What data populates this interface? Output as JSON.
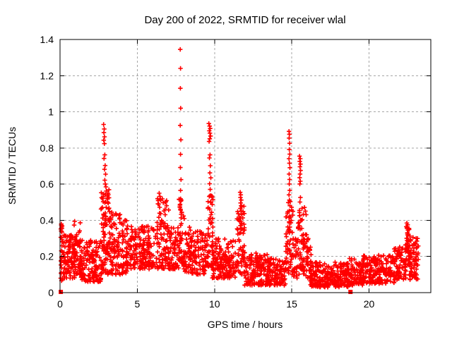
{
  "chart_data": {
    "type": "scatter",
    "title": "Day 200 of 2022, SRMTID for receiver wlal",
    "xlabel": "GPS time / hours",
    "ylabel": "SRMTID / TECUs",
    "xlim": [
      0,
      24
    ],
    "ylim": [
      0,
      1.4
    ],
    "grid": true,
    "legend": "none",
    "marker_color": "#ff0000",
    "grid_color": "#a6a6a6",
    "axis_color": "#000000",
    "xticks": [
      {
        "v": 0,
        "label": "0"
      },
      {
        "v": 5,
        "label": "5"
      },
      {
        "v": 10,
        "label": "10"
      },
      {
        "v": 15,
        "label": "15"
      },
      {
        "v": 20,
        "label": "20"
      }
    ],
    "yticks": [
      {
        "v": 0,
        "label": "0"
      },
      {
        "v": 0.2,
        "label": "0.2"
      },
      {
        "v": 0.4,
        "label": "0.4"
      },
      {
        "v": 0.6,
        "label": "0.6"
      },
      {
        "v": 0.8,
        "label": "0.8"
      },
      {
        "v": 1,
        "label": "1"
      },
      {
        "v": 1.2,
        "label": "1.2"
      },
      {
        "v": 1.4,
        "label": "1.4"
      }
    ],
    "series": [
      {
        "name": "srmtid-plus-markers",
        "marker": "plus",
        "color": "#ff0000",
        "seed": 7,
        "spike_points": [
          [
            0.08,
            0.38
          ],
          [
            0.1,
            0.355
          ],
          [
            0.12,
            0.335
          ],
          [
            2.82,
            0.93
          ],
          [
            2.86,
            0.905
          ],
          [
            2.84,
            0.885
          ],
          [
            2.88,
            0.862
          ],
          [
            2.83,
            0.843
          ],
          [
            2.87,
            0.824
          ],
          [
            2.9,
            0.762
          ],
          [
            2.85,
            0.742
          ],
          [
            2.92,
            0.703
          ],
          [
            2.88,
            0.682
          ],
          [
            2.95,
            0.655
          ],
          [
            2.9,
            0.622
          ],
          [
            2.93,
            0.601
          ],
          [
            2.97,
            0.585
          ],
          [
            3.0,
            0.562
          ],
          [
            2.8,
            0.545
          ],
          [
            3.04,
            0.522
          ],
          [
            3.08,
            0.501
          ],
          [
            3.35,
            0.445
          ],
          [
            3.42,
            0.425
          ],
          [
            3.3,
            0.405
          ],
          [
            6.42,
            0.55
          ],
          [
            6.47,
            0.532
          ],
          [
            6.52,
            0.511
          ],
          [
            6.38,
            0.49
          ],
          [
            6.45,
            0.472
          ],
          [
            6.85,
            0.502
          ],
          [
            6.9,
            0.481
          ],
          [
            6.8,
            0.462
          ],
          [
            7.78,
            1.345
          ],
          [
            7.8,
            1.24
          ],
          [
            7.79,
            1.13
          ],
          [
            7.81,
            1.02
          ],
          [
            7.78,
            0.925
          ],
          [
            7.82,
            0.845
          ],
          [
            7.8,
            0.765
          ],
          [
            7.79,
            0.692
          ],
          [
            7.83,
            0.625
          ],
          [
            7.8,
            0.565
          ],
          [
            7.85,
            0.512
          ],
          [
            7.76,
            0.472
          ],
          [
            7.88,
            0.443
          ],
          [
            8.38,
            0.362
          ],
          [
            8.44,
            0.345
          ],
          [
            9.63,
            0.935
          ],
          [
            9.68,
            0.921
          ],
          [
            9.72,
            0.908
          ],
          [
            9.66,
            0.895
          ],
          [
            9.7,
            0.882
          ],
          [
            9.74,
            0.866
          ],
          [
            9.69,
            0.851
          ],
          [
            9.65,
            0.836
          ],
          [
            9.71,
            0.762
          ],
          [
            9.67,
            0.745
          ],
          [
            9.73,
            0.702
          ],
          [
            9.7,
            0.662
          ],
          [
            9.76,
            0.635
          ],
          [
            9.68,
            0.602
          ],
          [
            9.72,
            0.571
          ],
          [
            9.66,
            0.532
          ],
          [
            9.74,
            0.501
          ],
          [
            9.7,
            0.462
          ],
          [
            9.77,
            0.431
          ],
          [
            9.64,
            0.402
          ],
          [
            11.66,
            0.555
          ],
          [
            11.7,
            0.541
          ],
          [
            11.68,
            0.526
          ],
          [
            11.73,
            0.512
          ],
          [
            11.69,
            0.496
          ],
          [
            11.72,
            0.481
          ],
          [
            11.67,
            0.466
          ],
          [
            11.71,
            0.451
          ],
          [
            11.74,
            0.432
          ],
          [
            11.69,
            0.412
          ],
          [
            11.72,
            0.392
          ],
          [
            11.68,
            0.371
          ],
          [
            11.75,
            0.352
          ],
          [
            11.7,
            0.331
          ],
          [
            14.82,
            0.892
          ],
          [
            14.85,
            0.876
          ],
          [
            14.83,
            0.855
          ],
          [
            14.86,
            0.826
          ],
          [
            14.84,
            0.792
          ],
          [
            14.87,
            0.766
          ],
          [
            14.82,
            0.741
          ],
          [
            14.85,
            0.716
          ],
          [
            14.88,
            0.691
          ],
          [
            14.83,
            0.656
          ],
          [
            14.86,
            0.626
          ],
          [
            14.84,
            0.601
          ],
          [
            14.87,
            0.566
          ],
          [
            14.82,
            0.541
          ],
          [
            14.85,
            0.512
          ],
          [
            14.88,
            0.481
          ],
          [
            14.84,
            0.452
          ],
          [
            14.86,
            0.421
          ],
          [
            14.83,
            0.392
          ],
          [
            14.87,
            0.362
          ],
          [
            14.85,
            0.331
          ],
          [
            15.5,
            0.755
          ],
          [
            15.55,
            0.741
          ],
          [
            15.52,
            0.726
          ],
          [
            15.56,
            0.711
          ],
          [
            15.53,
            0.696
          ],
          [
            15.57,
            0.676
          ],
          [
            15.54,
            0.656
          ],
          [
            15.51,
            0.636
          ],
          [
            15.55,
            0.616
          ],
          [
            15.52,
            0.601
          ],
          [
            15.56,
            0.526
          ],
          [
            15.53,
            0.501
          ],
          [
            15.5,
            0.426
          ],
          [
            15.57,
            0.401
          ],
          [
            15.54,
            0.351
          ],
          [
            15.82,
            0.471
          ],
          [
            15.88,
            0.451
          ],
          [
            15.93,
            0.431
          ],
          [
            22.45,
            0.385
          ],
          [
            22.5,
            0.375
          ],
          [
            22.47,
            0.361
          ],
          [
            22.52,
            0.346
          ],
          [
            22.48,
            0.331
          ],
          [
            22.51,
            0.316
          ],
          [
            22.46,
            0.301
          ],
          [
            22.53,
            0.286
          ],
          [
            22.49,
            0.271
          ],
          [
            22.52,
            0.256
          ],
          [
            22.47,
            0.241
          ],
          [
            22.55,
            0.221
          ],
          [
            22.58,
            0.201
          ],
          [
            22.56,
            0.186
          ],
          [
            23.05,
            0.3
          ],
          [
            23.1,
            0.285
          ],
          [
            23.0,
            0.27
          ]
        ],
        "baseline_clusters": [
          {
            "x0": 0.04,
            "x1": 0.18,
            "n": 26,
            "y0": 0.06,
            "y1": 0.38,
            "pow": 1.0
          },
          {
            "x0": 0.15,
            "x1": 0.95,
            "n": 95,
            "y0": 0.08,
            "y1": 0.32,
            "pow": 1.6
          },
          {
            "x0": 0.9,
            "x1": 1.35,
            "n": 55,
            "y0": 0.1,
            "y1": 0.4,
            "pow": 1.5
          },
          {
            "x0": 1.3,
            "x1": 2.65,
            "n": 135,
            "y0": 0.06,
            "y1": 0.3,
            "pow": 1.6
          },
          {
            "x0": 2.65,
            "x1": 3.2,
            "n": 95,
            "y0": 0.1,
            "y1": 0.57,
            "pow": 1.3
          },
          {
            "x0": 3.15,
            "x1": 4.35,
            "n": 125,
            "y0": 0.1,
            "y1": 0.44,
            "pow": 1.5
          },
          {
            "x0": 4.3,
            "x1": 6.25,
            "n": 190,
            "y0": 0.13,
            "y1": 0.37,
            "pow": 1.2
          },
          {
            "x0": 6.25,
            "x1": 7.15,
            "n": 95,
            "y0": 0.13,
            "y1": 0.52,
            "pow": 1.4
          },
          {
            "x0": 7.1,
            "x1": 7.72,
            "n": 60,
            "y0": 0.13,
            "y1": 0.36,
            "pow": 1.3
          },
          {
            "x0": 7.7,
            "x1": 8.05,
            "n": 45,
            "y0": 0.16,
            "y1": 0.52,
            "pow": 1.2
          },
          {
            "x0": 8.0,
            "x1": 9.55,
            "n": 150,
            "y0": 0.1,
            "y1": 0.34,
            "pow": 1.4
          },
          {
            "x0": 9.55,
            "x1": 9.9,
            "n": 45,
            "y0": 0.14,
            "y1": 0.56,
            "pow": 1.2
          },
          {
            "x0": 9.85,
            "x1": 11.45,
            "n": 160,
            "y0": 0.08,
            "y1": 0.3,
            "pow": 1.4
          },
          {
            "x0": 11.45,
            "x1": 11.98,
            "n": 60,
            "y0": 0.1,
            "y1": 0.5,
            "pow": 1.2
          },
          {
            "x0": 11.95,
            "x1": 13.45,
            "n": 150,
            "y0": 0.04,
            "y1": 0.22,
            "pow": 1.3
          },
          {
            "x0": 13.4,
            "x1": 14.62,
            "n": 115,
            "y0": 0.04,
            "y1": 0.19,
            "pow": 1.3
          },
          {
            "x0": 14.62,
            "x1": 15.08,
            "n": 50,
            "y0": 0.1,
            "y1": 0.52,
            "pow": 1.1
          },
          {
            "x0": 15.05,
            "x1": 15.38,
            "n": 32,
            "y0": 0.08,
            "y1": 0.3,
            "pow": 1.3
          },
          {
            "x0": 15.35,
            "x1": 15.78,
            "n": 45,
            "y0": 0.1,
            "y1": 0.48,
            "pow": 1.2
          },
          {
            "x0": 15.75,
            "x1": 16.25,
            "n": 50,
            "y0": 0.08,
            "y1": 0.36,
            "pow": 1.4
          },
          {
            "x0": 16.2,
            "x1": 18.65,
            "n": 230,
            "y0": 0.03,
            "y1": 0.17,
            "pow": 1.2
          },
          {
            "x0": 18.6,
            "x1": 19.65,
            "n": 95,
            "y0": 0.04,
            "y1": 0.19,
            "pow": 1.2
          },
          {
            "x0": 19.6,
            "x1": 21.65,
            "n": 190,
            "y0": 0.05,
            "y1": 0.21,
            "pow": 1.2
          },
          {
            "x0": 21.6,
            "x1": 22.38,
            "n": 75,
            "y0": 0.07,
            "y1": 0.26,
            "pow": 1.2
          },
          {
            "x0": 22.35,
            "x1": 22.68,
            "n": 32,
            "y0": 0.14,
            "y1": 0.38,
            "pow": 1.0
          },
          {
            "x0": 22.6,
            "x1": 23.2,
            "n": 65,
            "y0": 0.07,
            "y1": 0.31,
            "pow": 1.3
          }
        ]
      },
      {
        "name": "zero-flag-squares",
        "marker": "square",
        "color": "#ff0000",
        "points": [
          [
            0.05,
            0.004
          ],
          [
            18.8,
            0.004
          ]
        ]
      }
    ]
  }
}
